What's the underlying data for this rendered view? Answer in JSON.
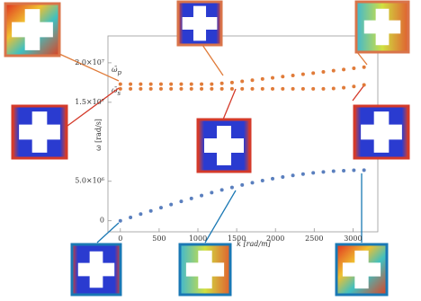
{
  "chart_data": {
    "type": "scatter",
    "xlabel": "k [rad/m]",
    "ylabel": "ω [rad/s]",
    "annotations": [
      {
        "text": "ω̄",
        "sub": "p"
      },
      {
        "text": "ω̄",
        "sub": "s"
      }
    ],
    "x": [
      0,
      131,
      262,
      393,
      524,
      654,
      785,
      916,
      1047,
      1178,
      1309,
      1440,
      1571,
      1702,
      1833,
      1963,
      2094,
      2225,
      2356,
      2487,
      2618,
      2749,
      2880,
      3011,
      3142
    ],
    "series": [
      {
        "color": "#e07b39",
        "values": [
          17300000,
          17300000,
          17300000,
          17300000,
          17300000,
          17300000,
          17300000,
          17300000,
          17300000,
          17300000,
          17400000,
          17500000,
          17650000,
          17800000,
          17950000,
          18100000,
          18250000,
          18400000,
          18550000,
          18700000,
          18850000,
          19000000,
          19150000,
          19300000,
          19450000
        ]
      },
      {
        "color": "#e07b39",
        "values": [
          16700000,
          16700000,
          16700000,
          16700000,
          16700000,
          16700000,
          16700000,
          16700000,
          16700000,
          16700000,
          16700000,
          16700000,
          16700000,
          16700000,
          16700000,
          16700000,
          16700000,
          16700000,
          16700000,
          16700000,
          16700000,
          16750000,
          16850000,
          17000000,
          17200000
        ]
      },
      {
        "color": "#5a7fbe",
        "values": [
          0,
          420000,
          840000,
          1250000,
          1660000,
          2060000,
          2450000,
          2830000,
          3200000,
          3560000,
          3900000,
          4220000,
          4530000,
          4810000,
          5080000,
          5320000,
          5540000,
          5740000,
          5910000,
          6060000,
          6180000,
          6280000,
          6340000,
          6390000,
          6400000
        ]
      }
    ],
    "xlim": [
      -160,
      3320
    ],
    "ylim": [
      -1400000,
      23400000
    ],
    "xticks": [
      0,
      500,
      1000,
      1500,
      2000,
      2500,
      3000
    ],
    "yticks": [
      0,
      {
        "value": 5000000,
        "label": "5.0×10⁶"
      },
      {
        "value": 15000000,
        "label": "1.5×10⁷"
      },
      {
        "value": 20000000,
        "label": "2.0×10⁷"
      }
    ],
    "grid": false
  }
}
